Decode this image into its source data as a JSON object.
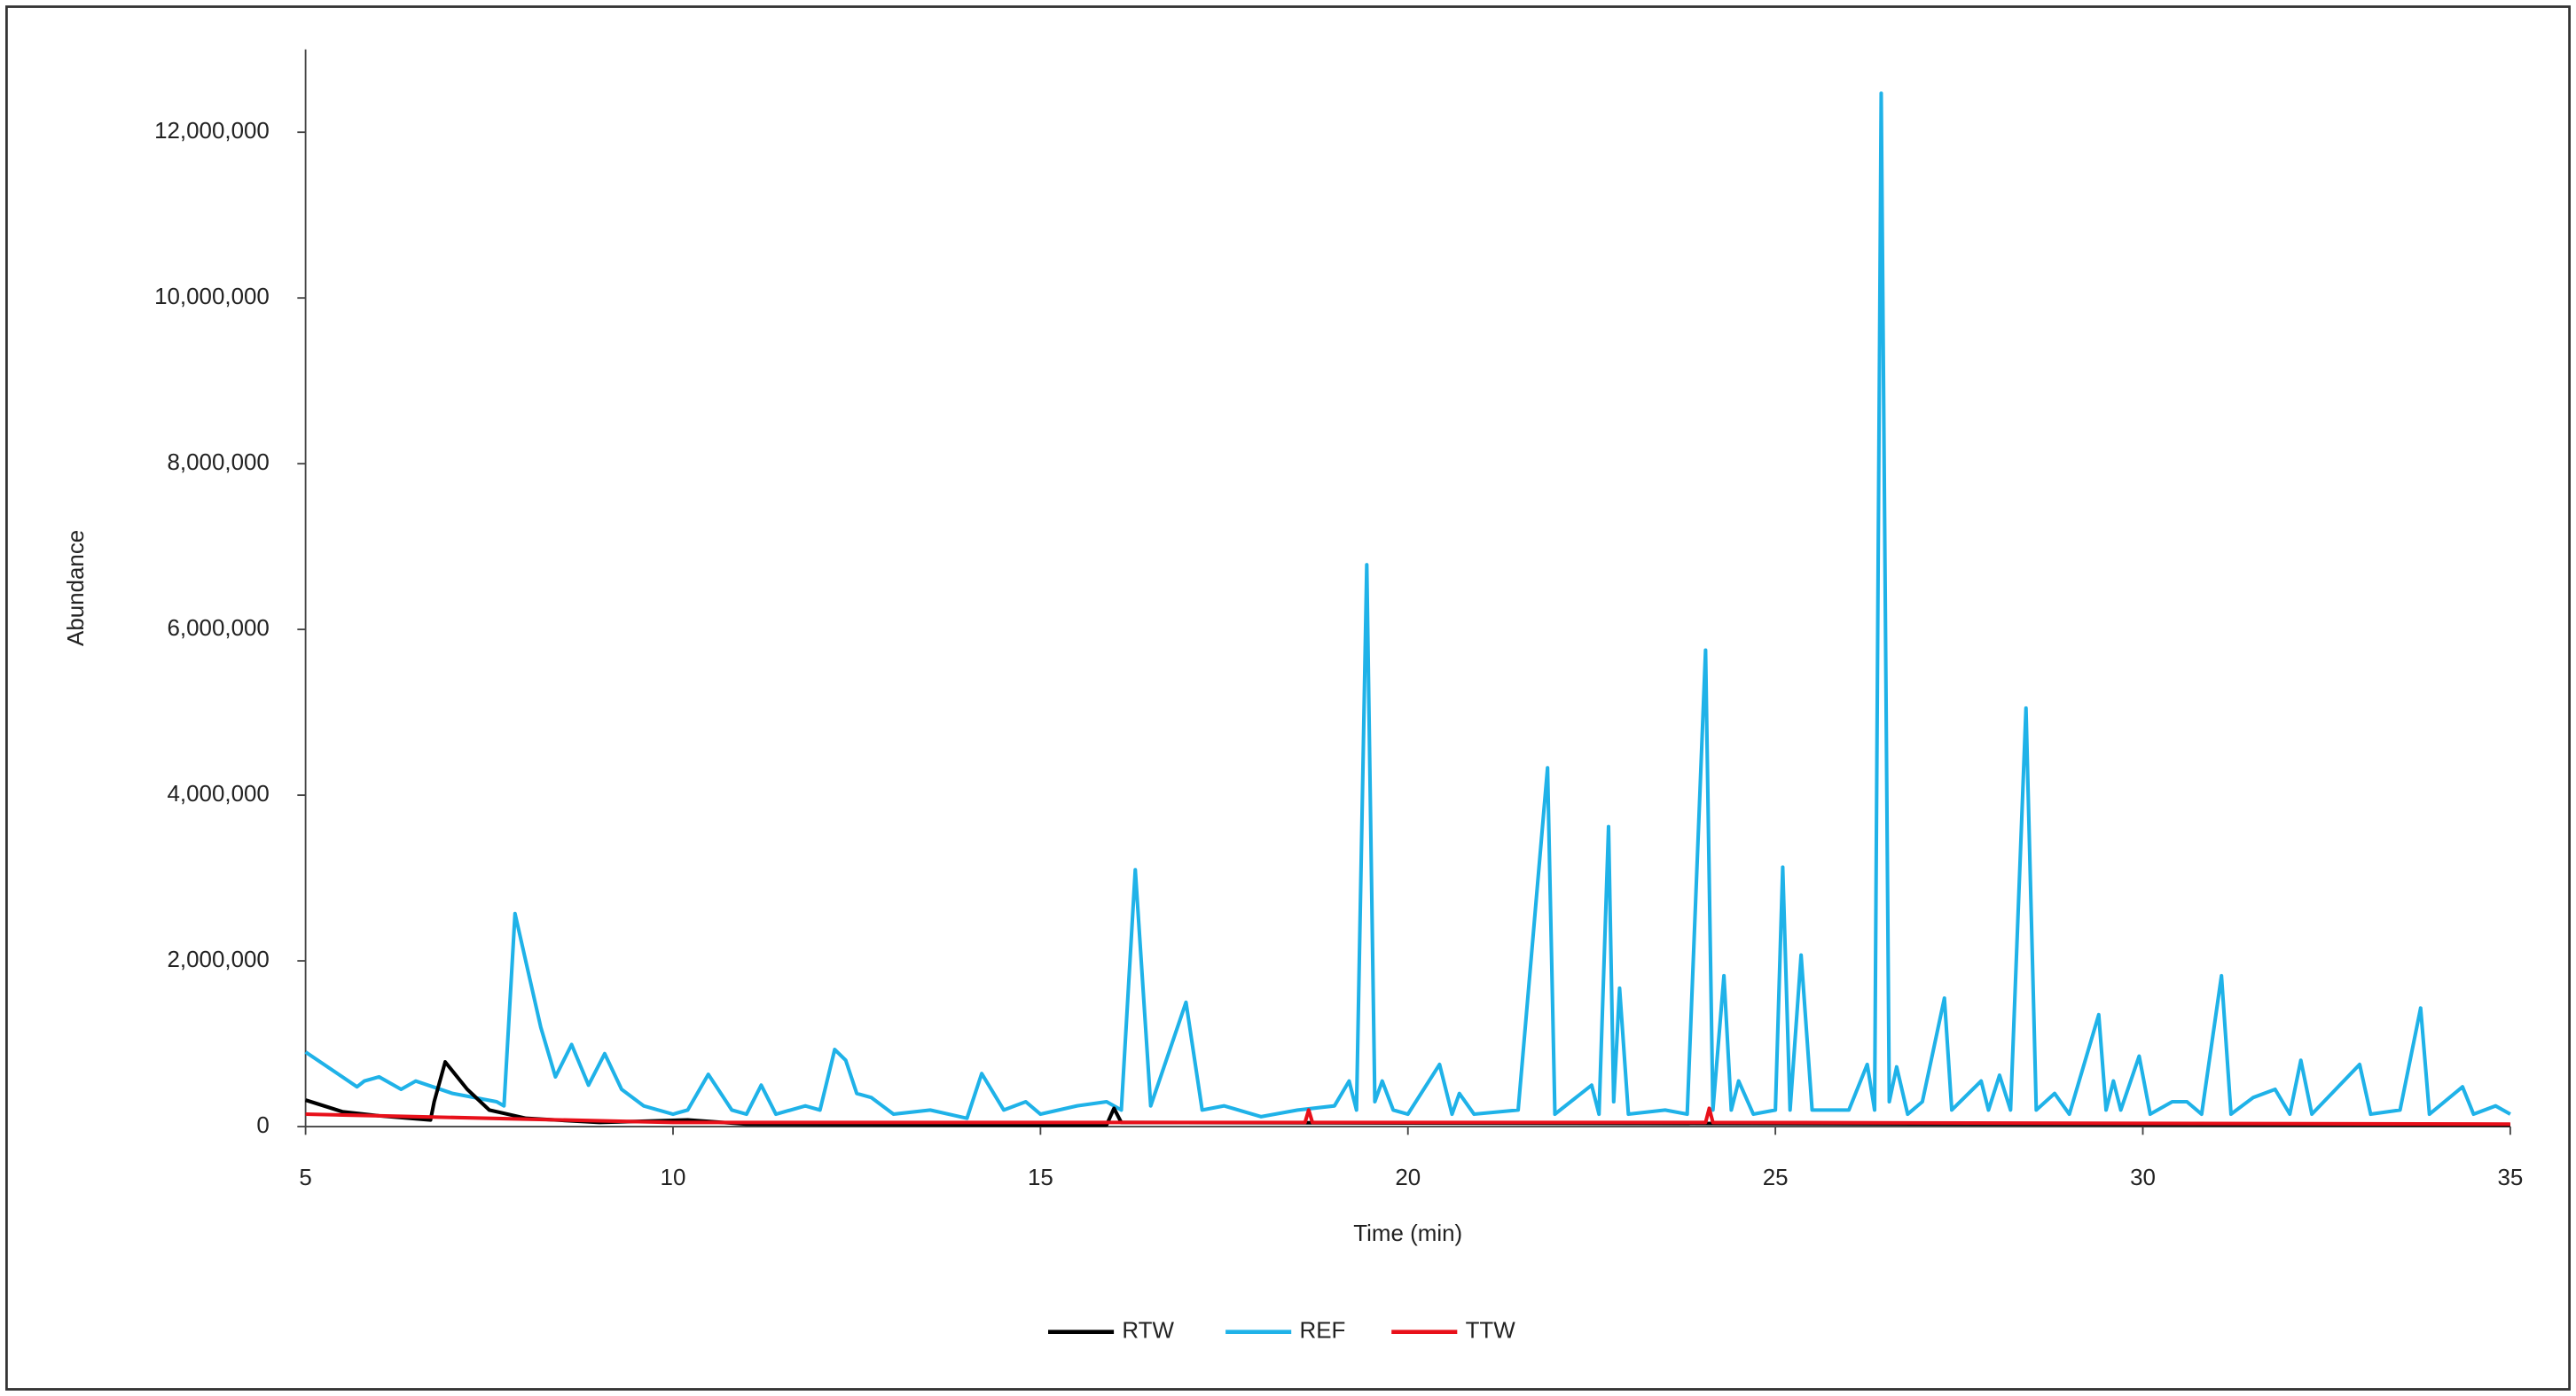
{
  "chart_data": {
    "type": "line",
    "xlabel": "Time (min)",
    "ylabel": "Abundance",
    "xlim": [
      5,
      35
    ],
    "xticks": [
      5,
      10,
      15,
      20,
      25,
      30,
      35
    ],
    "ylim": [
      0,
      13000000
    ],
    "yticks": [
      0,
      {
        "value": 2000000,
        "label": "2,000,000"
      },
      {
        "value": 4000000,
        "label": "4,000,000"
      },
      {
        "value": 6000000,
        "label": "6,000,000"
      },
      {
        "value": 8000000,
        "label": "8,000,000"
      },
      {
        "value": 10000000,
        "label": "10,000,000"
      },
      {
        "value": 12000000,
        "label": "12,000,000"
      }
    ],
    "grid": false,
    "legend": "bottom",
    "series": [
      {
        "name": "RTW",
        "color": "#000000",
        "x": [
          5,
          5.5,
          6,
          6.7,
          6.75,
          6.9,
          7.2,
          7.5,
          8,
          9,
          10.2,
          11,
          15,
          15.9,
          16.0,
          16.1,
          35
        ],
        "values": [
          320000,
          180000,
          130000,
          80000,
          300000,
          780000,
          450000,
          200000,
          100000,
          50000,
          80000,
          30000,
          20000,
          20000,
          220000,
          50000,
          20000
        ]
      },
      {
        "name": "REF",
        "color": "#1fb2e8",
        "x": [
          5,
          5.5,
          5.7,
          5.8,
          6.0,
          6.3,
          6.5,
          7.0,
          7.6,
          7.7,
          7.85,
          8.2,
          8.4,
          8.62,
          8.85,
          9.07,
          9.3,
          9.6,
          10.0,
          10.2,
          10.48,
          10.8,
          11.0,
          11.2,
          11.4,
          11.8,
          12.0,
          12.2,
          12.35,
          12.5,
          12.7,
          13.0,
          13.5,
          14.0,
          14.2,
          14.5,
          14.8,
          15.0,
          15.5,
          15.9,
          16.1,
          16.29,
          16.5,
          16.98,
          17.2,
          17.5,
          18.0,
          18.5,
          19.0,
          19.2,
          19.3,
          19.44,
          19.55,
          19.65,
          19.8,
          20.0,
          20.43,
          20.6,
          20.7,
          20.9,
          21.5,
          21.9,
          22.0,
          22.5,
          22.6,
          22.73,
          22.8,
          22.88,
          23.0,
          23.5,
          23.8,
          24.05,
          24.15,
          24.3,
          24.4,
          24.5,
          24.7,
          25.0,
          25.1,
          25.2,
          25.35,
          25.5,
          26.0,
          26.25,
          26.35,
          26.44,
          26.55,
          26.65,
          26.8,
          27.0,
          27.3,
          27.4,
          27.8,
          27.9,
          28.05,
          28.2,
          28.41,
          28.55,
          28.8,
          29.0,
          29.4,
          29.5,
          29.6,
          29.7,
          29.95,
          30.1,
          30.4,
          30.6,
          30.8,
          31.07,
          31.2,
          31.5,
          31.8,
          32.0,
          32.15,
          32.3,
          32.95,
          33.1,
          33.5,
          33.78,
          33.9,
          34.35,
          34.5,
          34.8,
          35
        ],
        "values": [
          900000,
          600000,
          480000,
          550000,
          600000,
          450000,
          550000,
          400000,
          300000,
          250000,
          2570000,
          1200000,
          600000,
          990000,
          500000,
          880000,
          450000,
          250000,
          150000,
          200000,
          630000,
          200000,
          150000,
          500000,
          150000,
          250000,
          200000,
          930000,
          800000,
          400000,
          350000,
          150000,
          200000,
          100000,
          640000,
          200000,
          300000,
          150000,
          250000,
          300000,
          200000,
          3100000,
          250000,
          1500000,
          200000,
          250000,
          120000,
          200000,
          250000,
          550000,
          200000,
          6780000,
          300000,
          550000,
          200000,
          150000,
          750000,
          150000,
          400000,
          150000,
          200000,
          4330000,
          150000,
          500000,
          150000,
          3620000,
          300000,
          1670000,
          150000,
          200000,
          150000,
          5750000,
          200000,
          1820000,
          200000,
          550000,
          150000,
          200000,
          3130000,
          200000,
          2070000,
          200000,
          200000,
          750000,
          200000,
          12470000,
          300000,
          720000,
          150000,
          300000,
          1550000,
          200000,
          550000,
          200000,
          620000,
          200000,
          5050000,
          200000,
          400000,
          150000,
          1350000,
          200000,
          550000,
          200000,
          850000,
          150000,
          300000,
          300000,
          150000,
          1820000,
          150000,
          350000,
          450000,
          150000,
          800000,
          150000,
          750000,
          150000,
          200000,
          1430000,
          150000,
          480000,
          150000,
          250000,
          150000
        ]
      },
      {
        "name": "TTW",
        "color": "#e8101a",
        "x": [
          5,
          10,
          18.6,
          18.65,
          18.7,
          24.05,
          24.1,
          24.15,
          35
        ],
        "values": [
          150000,
          50000,
          50000,
          200000,
          50000,
          50000,
          220000,
          50000,
          30000
        ]
      }
    ]
  }
}
